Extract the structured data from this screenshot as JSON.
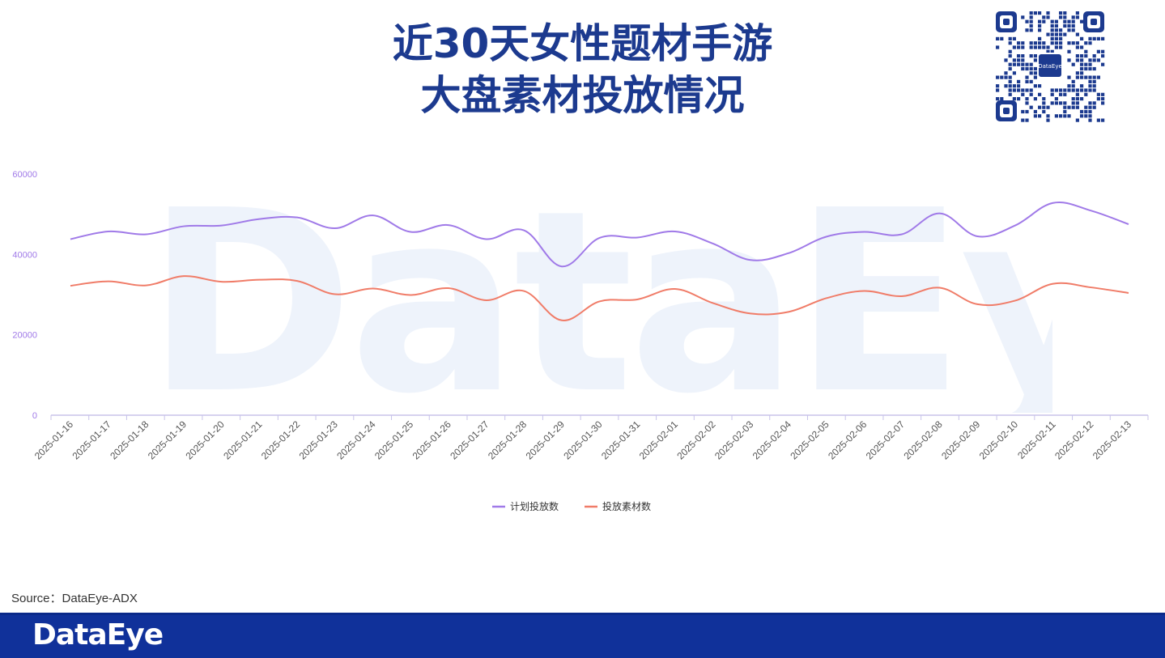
{
  "title_line1": "近30天女性题材手游",
  "title_line2": "大盘素材投放情况",
  "qr_center_label": "DataEye",
  "watermark": "DataEye",
  "source": "Source：DataEye-ADX",
  "footer_logo": "DataEye",
  "colors": {
    "title": "#1c3a8f",
    "series_plan": "#a07ae8",
    "series_material": "#f07c68",
    "footer": "#10319a",
    "axis_label": "#a07ae8"
  },
  "chart_data": {
    "type": "line",
    "title": "",
    "xlabel": "",
    "ylabel": "",
    "ylim": [
      0,
      60000
    ],
    "yticks": [
      0,
      20000,
      40000,
      60000
    ],
    "legend_position": "bottom-center",
    "grid": false,
    "categories": [
      "2025-01-16",
      "2025-01-17",
      "2025-01-18",
      "2025-01-19",
      "2025-01-20",
      "2025-01-21",
      "2025-01-22",
      "2025-01-23",
      "2025-01-24",
      "2025-01-25",
      "2025-01-26",
      "2025-01-27",
      "2025-01-28",
      "2025-01-29",
      "2025-01-30",
      "2025-01-31",
      "2025-02-01",
      "2025-02-02",
      "2025-02-03",
      "2025-02-04",
      "2025-02-05",
      "2025-02-06",
      "2025-02-07",
      "2025-02-08",
      "2025-02-09",
      "2025-02-10",
      "2025-02-11",
      "2025-02-12",
      "2025-02-13"
    ],
    "series": [
      {
        "name": "计划投放数",
        "values": [
          43800,
          45700,
          45000,
          47000,
          47200,
          48800,
          49200,
          46500,
          49700,
          45600,
          47300,
          43800,
          46000,
          37000,
          44100,
          44200,
          45700,
          42700,
          38600,
          40300,
          44400,
          45600,
          45000,
          50200,
          44500,
          47200,
          52800,
          50900,
          47500
        ]
      },
      {
        "name": "投放素材数",
        "values": [
          32200,
          33300,
          32300,
          34600,
          33200,
          33700,
          33400,
          30100,
          31500,
          29900,
          31600,
          28600,
          30900,
          23600,
          28300,
          28800,
          31400,
          27900,
          25300,
          25700,
          29100,
          30900,
          29600,
          31700,
          27600,
          28500,
          32700,
          31800,
          30400
        ]
      }
    ]
  }
}
